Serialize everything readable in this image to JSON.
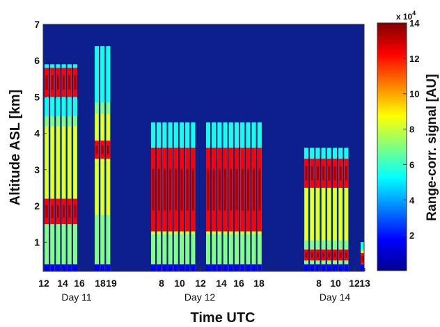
{
  "chart_data": {
    "type": "heatmap",
    "xlabel": "Time UTC",
    "ylabel": "Altitude ASL [km]",
    "ylim": [
      0.2,
      7
    ],
    "y_ticks": [
      1,
      2,
      3,
      4,
      5,
      6,
      7
    ],
    "x_tick_labels": [
      "12",
      "14",
      "16",
      "18",
      "19",
      "8",
      "10",
      "12",
      "12",
      "14",
      "16",
      "18",
      "8",
      "10",
      "12",
      "13"
    ],
    "day_labels": [
      "Day 11",
      "Day 12",
      "Day 14"
    ],
    "colorbar": {
      "label": "Range-corr. signal [AU]",
      "multiplier": "x 10",
      "exponent": "4",
      "ticks": [
        "2",
        "4",
        "6",
        "8",
        "10",
        "12",
        "14"
      ],
      "range": [
        0,
        14
      ],
      "colors": [
        "#00008f",
        "#0000ff",
        "#0080ff",
        "#00ffff",
        "#80ff80",
        "#ffff00",
        "#ff8000",
        "#ff0000",
        "#800000"
      ]
    },
    "background_color": "#0d1f8c",
    "profile_groups": [
      {
        "day": "Day 11",
        "segment": "12-16 UTC",
        "cloud_top_km": 5.9,
        "strong_layers_km": [
          [
            1.5,
            2.2
          ],
          [
            5.0,
            5.8
          ]
        ]
      },
      {
        "day": "Day 11",
        "segment": "18-19 UTC",
        "cloud_top_km": 6.4,
        "strong_layers_km": [
          [
            3.3,
            3.8
          ]
        ]
      },
      {
        "day": "Day 12",
        "segment": "7-18 UTC",
        "cloud_top_km": 4.3,
        "strong_layers_km": [
          [
            1.3,
            3.6
          ]
        ]
      },
      {
        "day": "Day 14",
        "segment": "7-12 UTC",
        "cloud_top_km": 3.6,
        "strong_layers_km": [
          [
            0.5,
            0.8
          ],
          [
            2.5,
            3.3
          ]
        ]
      },
      {
        "day": "Day 14",
        "segment": "13 UTC",
        "cloud_top_km": 1.0,
        "strong_layers_km": [
          [
            0.4,
            0.7
          ]
        ]
      }
    ]
  }
}
